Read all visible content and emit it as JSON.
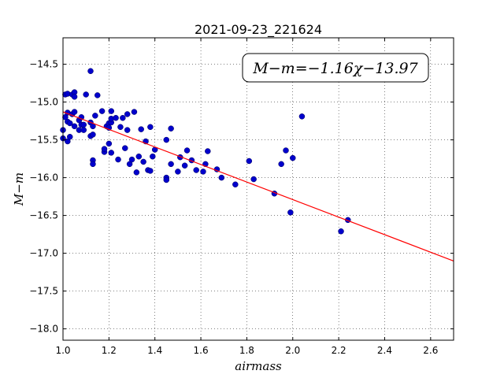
{
  "chart_data": {
    "type": "scatter",
    "title": "2021-09-23_221624",
    "xlabel": "airmass",
    "ylabel": "M−m",
    "xlim": [
      1.0,
      2.7
    ],
    "ylim": [
      -18.15,
      -14.15
    ],
    "xticks": [
      1.0,
      1.2,
      1.4,
      1.6,
      1.8,
      2.0,
      2.2,
      2.4,
      2.6
    ],
    "yticks": [
      -14.5,
      -15.0,
      -15.5,
      -16.0,
      -16.5,
      -17.0,
      -17.5,
      -18.0
    ],
    "xtick_labels": [
      "1.0",
      "1.2",
      "1.4",
      "1.6",
      "1.8",
      "2.0",
      "2.2",
      "2.4",
      "2.6"
    ],
    "ytick_labels": [
      "−14.5",
      "−15.0",
      "−15.5",
      "−16.0",
      "−16.5",
      "−17.0",
      "−17.5",
      "−18.0"
    ],
    "grid": true,
    "point_color": "#0000cc",
    "line_color": "#ff0000",
    "annotation": "M−m=−1.16χ−13.97",
    "fit": {
      "slope": -1.16,
      "intercept": -13.97
    },
    "points": [
      [
        1.0,
        -15.37
      ],
      [
        1.0,
        -15.48
      ],
      [
        1.01,
        -14.9
      ],
      [
        1.01,
        -15.2
      ],
      [
        1.02,
        -14.89
      ],
      [
        1.02,
        -15.14
      ],
      [
        1.02,
        -15.26
      ],
      [
        1.02,
        -15.52
      ],
      [
        1.03,
        -15.46
      ],
      [
        1.03,
        -15.28
      ],
      [
        1.04,
        -14.9
      ],
      [
        1.04,
        -15.16
      ],
      [
        1.05,
        -15.13
      ],
      [
        1.05,
        -15.32
      ],
      [
        1.05,
        -14.87
      ],
      [
        1.05,
        -14.93
      ],
      [
        1.07,
        -15.37
      ],
      [
        1.07,
        -15.24
      ],
      [
        1.08,
        -15.2
      ],
      [
        1.08,
        -15.3
      ],
      [
        1.09,
        -15.37
      ],
      [
        1.09,
        -15.3
      ],
      [
        1.1,
        -14.9
      ],
      [
        1.12,
        -14.59
      ],
      [
        1.12,
        -15.27
      ],
      [
        1.12,
        -15.45
      ],
      [
        1.13,
        -15.32
      ],
      [
        1.13,
        -15.43
      ],
      [
        1.13,
        -15.77
      ],
      [
        1.13,
        -15.82
      ],
      [
        1.14,
        -15.18
      ],
      [
        1.15,
        -14.91
      ],
      [
        1.17,
        -15.12
      ],
      [
        1.18,
        -15.66
      ],
      [
        1.18,
        -15.62
      ],
      [
        1.19,
        -15.32
      ],
      [
        1.2,
        -15.28
      ],
      [
        1.2,
        -15.34
      ],
      [
        1.2,
        -15.55
      ],
      [
        1.21,
        -15.12
      ],
      [
        1.21,
        -15.27
      ],
      [
        1.21,
        -15.22
      ],
      [
        1.21,
        -15.67
      ],
      [
        1.23,
        -15.21
      ],
      [
        1.24,
        -15.76
      ],
      [
        1.25,
        -15.33
      ],
      [
        1.26,
        -15.21
      ],
      [
        1.27,
        -15.61
      ],
      [
        1.28,
        -15.16
      ],
      [
        1.28,
        -15.37
      ],
      [
        1.29,
        -15.82
      ],
      [
        1.3,
        -15.76
      ],
      [
        1.31,
        -15.13
      ],
      [
        1.32,
        -15.93
      ],
      [
        1.33,
        -15.72
      ],
      [
        1.34,
        -15.36
      ],
      [
        1.35,
        -15.79
      ],
      [
        1.36,
        -15.52
      ],
      [
        1.37,
        -15.9
      ],
      [
        1.38,
        -15.91
      ],
      [
        1.38,
        -15.33
      ],
      [
        1.39,
        -15.72
      ],
      [
        1.4,
        -15.63
      ],
      [
        1.45,
        -15.5
      ],
      [
        1.45,
        -16.0
      ],
      [
        1.45,
        -16.03
      ],
      [
        1.47,
        -15.82
      ],
      [
        1.47,
        -15.35
      ],
      [
        1.5,
        -15.92
      ],
      [
        1.51,
        -15.73
      ],
      [
        1.53,
        -15.84
      ],
      [
        1.54,
        -15.64
      ],
      [
        1.56,
        -15.77
      ],
      [
        1.58,
        -15.9
      ],
      [
        1.61,
        -15.92
      ],
      [
        1.62,
        -15.82
      ],
      [
        1.63,
        -15.65
      ],
      [
        1.67,
        -15.89
      ],
      [
        1.69,
        -16.0
      ],
      [
        1.75,
        -16.09
      ],
      [
        1.81,
        -15.78
      ],
      [
        1.83,
        -16.02
      ],
      [
        1.92,
        -16.21
      ],
      [
        1.95,
        -15.82
      ],
      [
        1.97,
        -15.64
      ],
      [
        1.99,
        -16.46
      ],
      [
        2.0,
        -15.74
      ],
      [
        2.04,
        -15.19
      ],
      [
        2.21,
        -16.71
      ],
      [
        2.24,
        -16.56
      ]
    ]
  }
}
